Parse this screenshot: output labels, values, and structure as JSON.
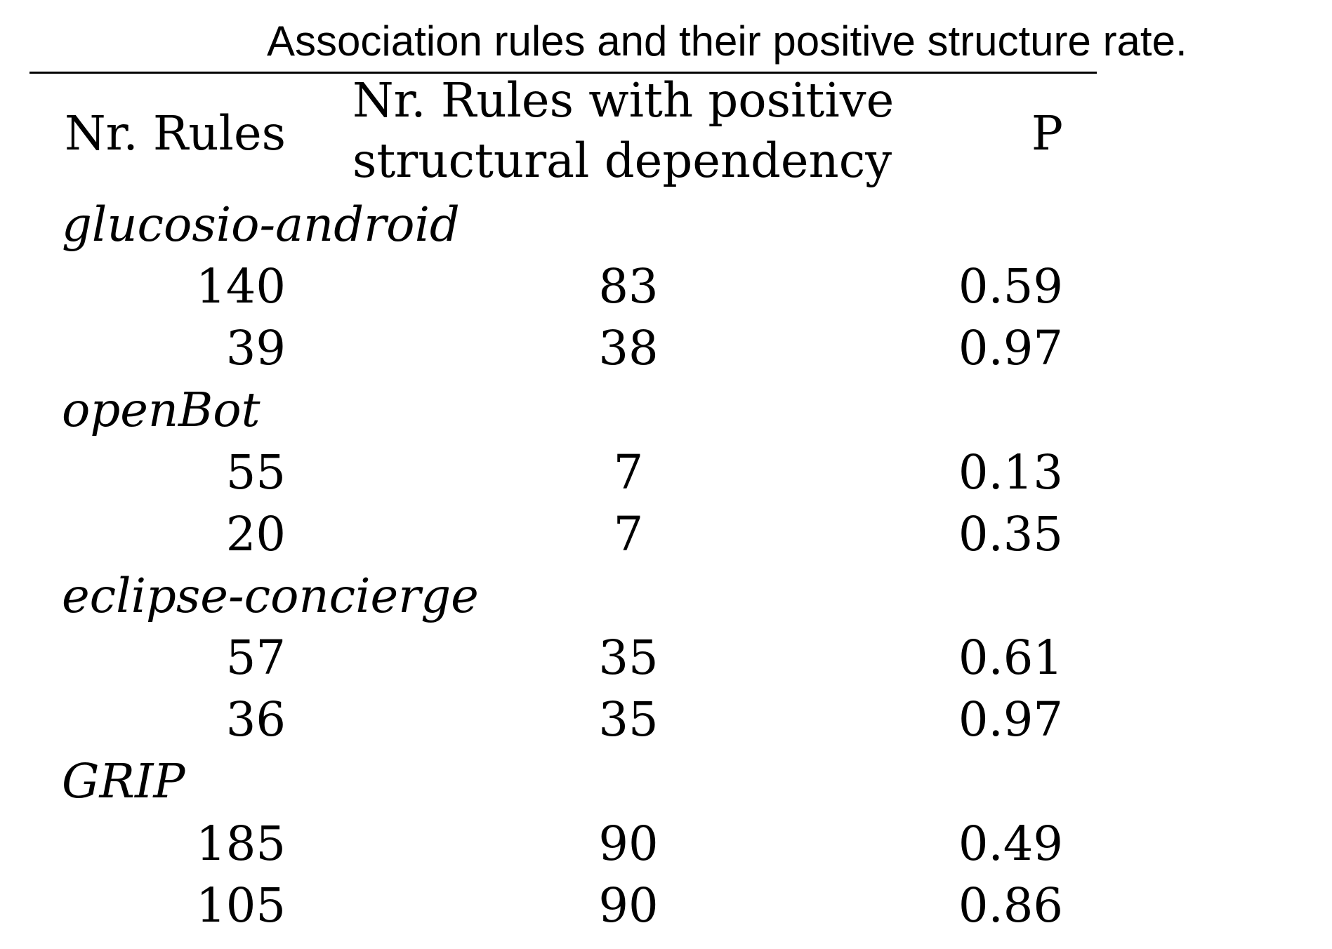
{
  "caption": "Association rules and their positive structure rate.",
  "headers": {
    "col1": "Nr. Rules",
    "col2_line1": "Nr. Rules with positive",
    "col2_line2": "structural dependency",
    "col3": "P"
  },
  "groups": [
    {
      "name": "glucosio-android",
      "rows": [
        {
          "rules": "140",
          "positive": "83",
          "p": "0.59"
        },
        {
          "rules": "39",
          "positive": "38",
          "p": "0.97"
        }
      ]
    },
    {
      "name": "openBot",
      "rows": [
        {
          "rules": "55",
          "positive": "7",
          "p": "0.13"
        },
        {
          "rules": "20",
          "positive": "7",
          "p": "0.35"
        }
      ]
    },
    {
      "name": "eclipse-concierge",
      "rows": [
        {
          "rules": "57",
          "positive": "35",
          "p": "0.61"
        },
        {
          "rules": "36",
          "positive": "35",
          "p": "0.97"
        }
      ]
    },
    {
      "name": "GRIP",
      "rows": [
        {
          "rules": "185",
          "positive": "90",
          "p": "0.49"
        },
        {
          "rules": "105",
          "positive": "90",
          "p": "0.86"
        }
      ]
    }
  ]
}
